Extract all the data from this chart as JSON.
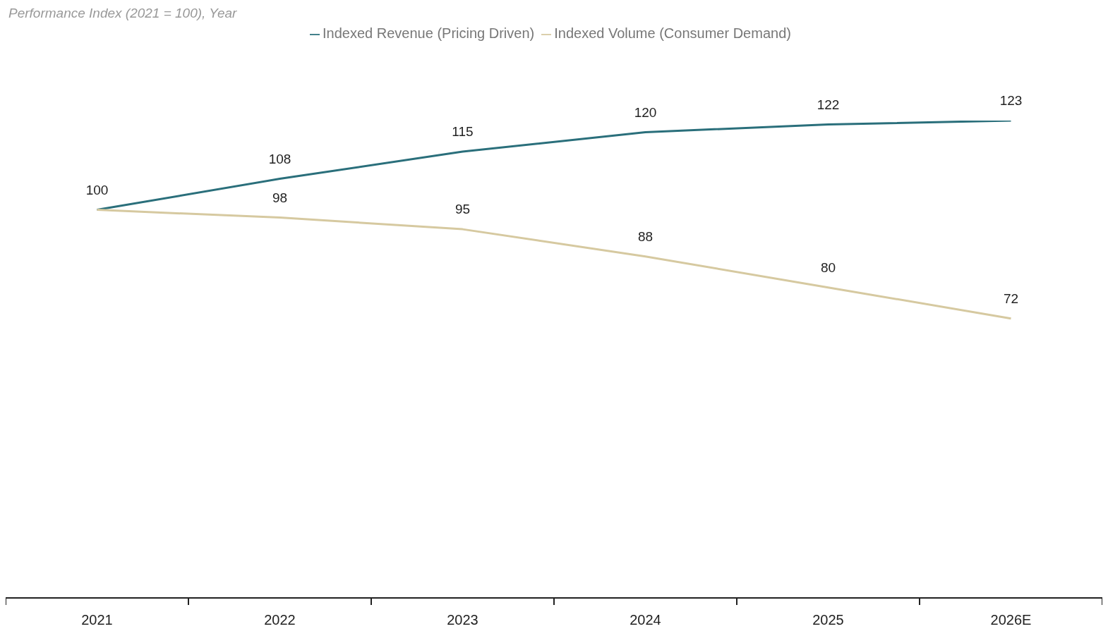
{
  "chart_data": {
    "type": "line",
    "subtitle": "Performance Index (2021 = 100), Year",
    "categories": [
      "2021",
      "2022",
      "2023",
      "2024",
      "2025",
      "2026E"
    ],
    "series": [
      {
        "name": "Indexed Revenue (Pricing Driven)",
        "color": "#2a6f7b",
        "values": [
          100,
          108,
          115,
          120,
          122,
          123
        ],
        "value_labels": [
          "100",
          "108",
          "115",
          "120",
          "122",
          "123"
        ]
      },
      {
        "name": "Indexed Volume (Consumer Demand)",
        "color": "#d6c9a0",
        "values": [
          100,
          98,
          95,
          88,
          80,
          72
        ],
        "value_labels": [
          null,
          "98",
          "95",
          "88",
          "80",
          "72"
        ]
      }
    ],
    "grid": false,
    "legend": "top",
    "marker": "none",
    "line_style": "solid",
    "tick_labels": "x"
  }
}
